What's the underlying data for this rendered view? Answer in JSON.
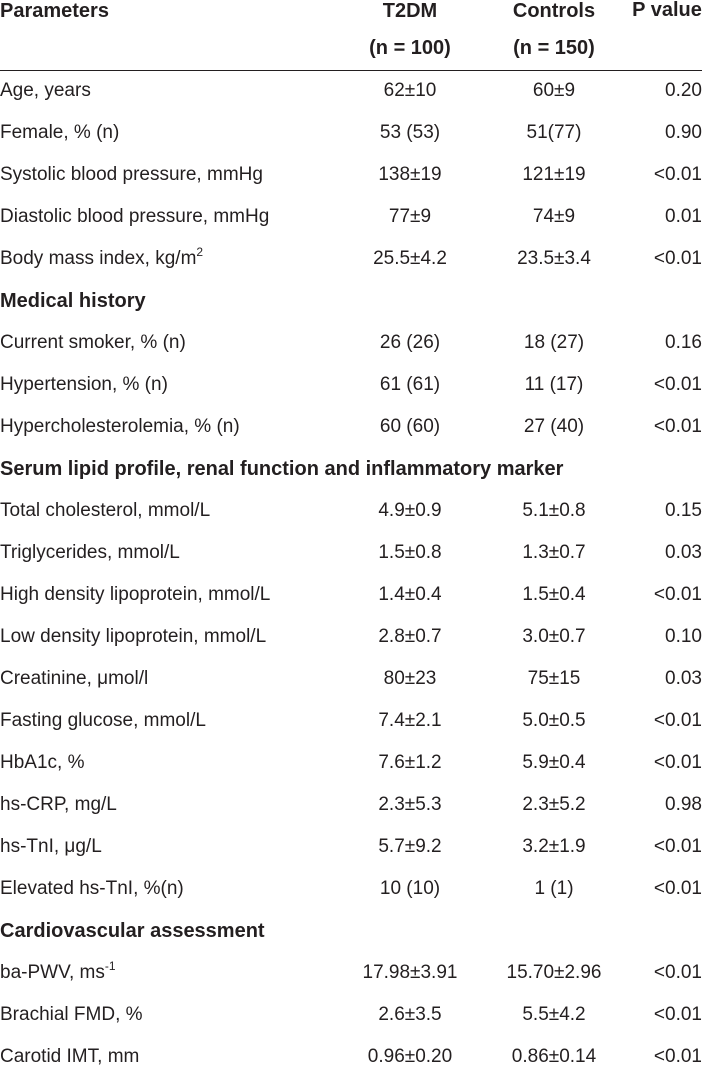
{
  "header": {
    "parameters": "Parameters",
    "t2dm": "T2DM",
    "t2dm_n": "(n = 100)",
    "controls": "Controls",
    "controls_n": "(n = 150)",
    "p_value": "P value"
  },
  "rows": [
    {
      "label": "Age, years",
      "t2dm": "62±10",
      "controls": "60±9",
      "p": "0.20"
    },
    {
      "label": "Female, % (n)",
      "t2dm": "53 (53)",
      "controls": "51(77)",
      "p": "0.90"
    },
    {
      "label": "Systolic blood pressure, mmHg",
      "t2dm": "138±19",
      "controls": "121±19",
      "p": "<0.01"
    },
    {
      "label": "Diastolic blood pressure, mmHg",
      "t2dm": "77±9",
      "controls": "74±9",
      "p": "0.01"
    },
    {
      "label": "Body mass index, kg/m",
      "sup": "2",
      "t2dm": "25.5±4.2",
      "controls": "23.5±3.4",
      "p": "<0.01"
    },
    {
      "section": "Medical history"
    },
    {
      "label": "Current smoker, % (n)",
      "t2dm": "26 (26)",
      "controls": "18 (27)",
      "p": "0.16"
    },
    {
      "label": "Hypertension, % (n)",
      "t2dm": "61 (61)",
      "controls": "11 (17)",
      "p": "<0.01"
    },
    {
      "label": "Hypercholesterolemia, % (n)",
      "t2dm": "60 (60)",
      "controls": "27 (40)",
      "p": "<0.01"
    },
    {
      "section": "Serum lipid profile, renal function and inflammatory marker"
    },
    {
      "label": "Total cholesterol, mmol/L",
      "t2dm": "4.9±0.9",
      "controls": "5.1±0.8",
      "p": "0.15"
    },
    {
      "label": "Triglycerides, mmol/L",
      "t2dm": "1.5±0.8",
      "controls": "1.3±0.7",
      "p": "0.03"
    },
    {
      "label": "High density lipoprotein, mmol/L",
      "t2dm": "1.4±0.4",
      "controls": "1.5±0.4",
      "p": "<0.01"
    },
    {
      "label": "Low density lipoprotein, mmol/L",
      "t2dm": "2.8±0.7",
      "controls": "3.0±0.7",
      "p": "0.10"
    },
    {
      "label": "Creatinine, μmol/l",
      "t2dm": "80±23",
      "controls": "75±15",
      "p": "0.03"
    },
    {
      "label": "Fasting glucose, mmol/L",
      "t2dm": "7.4±2.1",
      "controls": "5.0±0.5",
      "p": "<0.01"
    },
    {
      "label": "HbA1c, %",
      "t2dm": "7.6±1.2",
      "controls": "5.9±0.4",
      "p": "<0.01"
    },
    {
      "label": "hs-CRP, mg/L",
      "t2dm": "2.3±5.3",
      "controls": "2.3±5.2",
      "p": "0.98"
    },
    {
      "label": "hs-TnI, μg/L",
      "t2dm": "5.7±9.2",
      "controls": "3.2±1.9",
      "p": "<0.01"
    },
    {
      "label": "Elevated hs-TnI, %(n)",
      "t2dm": "10 (10)",
      "controls": "1 (1)",
      "p": "<0.01"
    },
    {
      "section": "Cardiovascular assessment"
    },
    {
      "label": "ba-PWV, ms",
      "sup": "-1",
      "t2dm": "17.98±3.91",
      "controls": "15.70±2.96",
      "p": "<0.01"
    },
    {
      "label": "Brachial FMD, %",
      "t2dm": "2.6±3.5",
      "controls": "5.5±4.2",
      "p": "<0.01"
    },
    {
      "label": "Carotid IMT, mm",
      "t2dm": "0.96±0.20",
      "controls": "0.86±0.14",
      "p": "<0.01"
    }
  ]
}
